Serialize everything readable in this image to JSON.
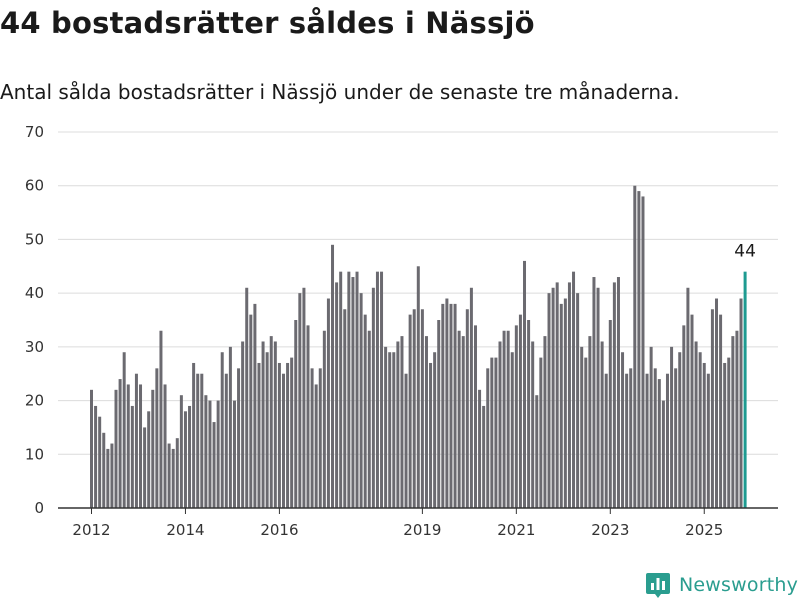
{
  "header": {
    "title": "44 bostadsrätter såldes i Nässjö",
    "subtitle": "Antal sålda bostadsrätter i Nässjö under de senaste tre månaderna."
  },
  "brand": {
    "name": "Newsworthy",
    "icon": "bar-chart-logo-icon",
    "color": "#2a9d8f"
  },
  "colors": {
    "bar": "#6b6a70",
    "highlight": "#1e9b91",
    "grid": "#dcdcdc",
    "axis": "#333333"
  },
  "chart_data": {
    "type": "bar",
    "title": "",
    "xlabel": "",
    "ylabel": "",
    "ylim": [
      0,
      70
    ],
    "yticks": [
      0,
      10,
      20,
      30,
      40,
      50,
      60,
      70
    ],
    "grid": true,
    "x_tick_labels": [
      "2012",
      "2014",
      "2016",
      "2019",
      "2021",
      "2023",
      "2025"
    ],
    "x_tick_bar_index": [
      0,
      23,
      46,
      81,
      104,
      127,
      150
    ],
    "values": [
      22,
      19,
      17,
      14,
      11,
      12,
      22,
      24,
      29,
      23,
      19,
      25,
      23,
      15,
      18,
      22,
      26,
      33,
      23,
      12,
      11,
      13,
      21,
      18,
      19,
      27,
      25,
      25,
      21,
      20,
      16,
      20,
      29,
      25,
      30,
      20,
      26,
      31,
      41,
      36,
      38,
      27,
      31,
      29,
      32,
      31,
      27,
      25,
      27,
      28,
      35,
      40,
      41,
      34,
      26,
      23,
      26,
      33,
      39,
      49,
      42,
      44,
      37,
      44,
      43,
      44,
      40,
      36,
      33,
      41,
      44,
      44,
      30,
      29,
      29,
      31,
      32,
      25,
      36,
      37,
      45,
      37,
      32,
      27,
      29,
      35,
      38,
      39,
      38,
      38,
      33,
      32,
      37,
      41,
      34,
      22,
      19,
      26,
      28,
      28,
      31,
      33,
      33,
      29,
      34,
      36,
      46,
      35,
      31,
      21,
      28,
      32,
      40,
      41,
      42,
      38,
      39,
      42,
      44,
      40,
      30,
      28,
      32,
      43,
      41,
      31,
      25,
      35,
      42,
      43,
      29,
      25,
      26,
      60,
      59,
      58,
      25,
      30,
      26,
      24,
      20,
      25,
      30,
      26,
      29,
      34,
      41,
      36,
      31,
      29,
      27,
      25,
      37,
      39,
      36,
      27,
      28,
      32,
      33,
      39,
      44
    ],
    "highlight_index": 160,
    "data_labels": [
      {
        "index": 160,
        "text": "44"
      }
    ]
  }
}
